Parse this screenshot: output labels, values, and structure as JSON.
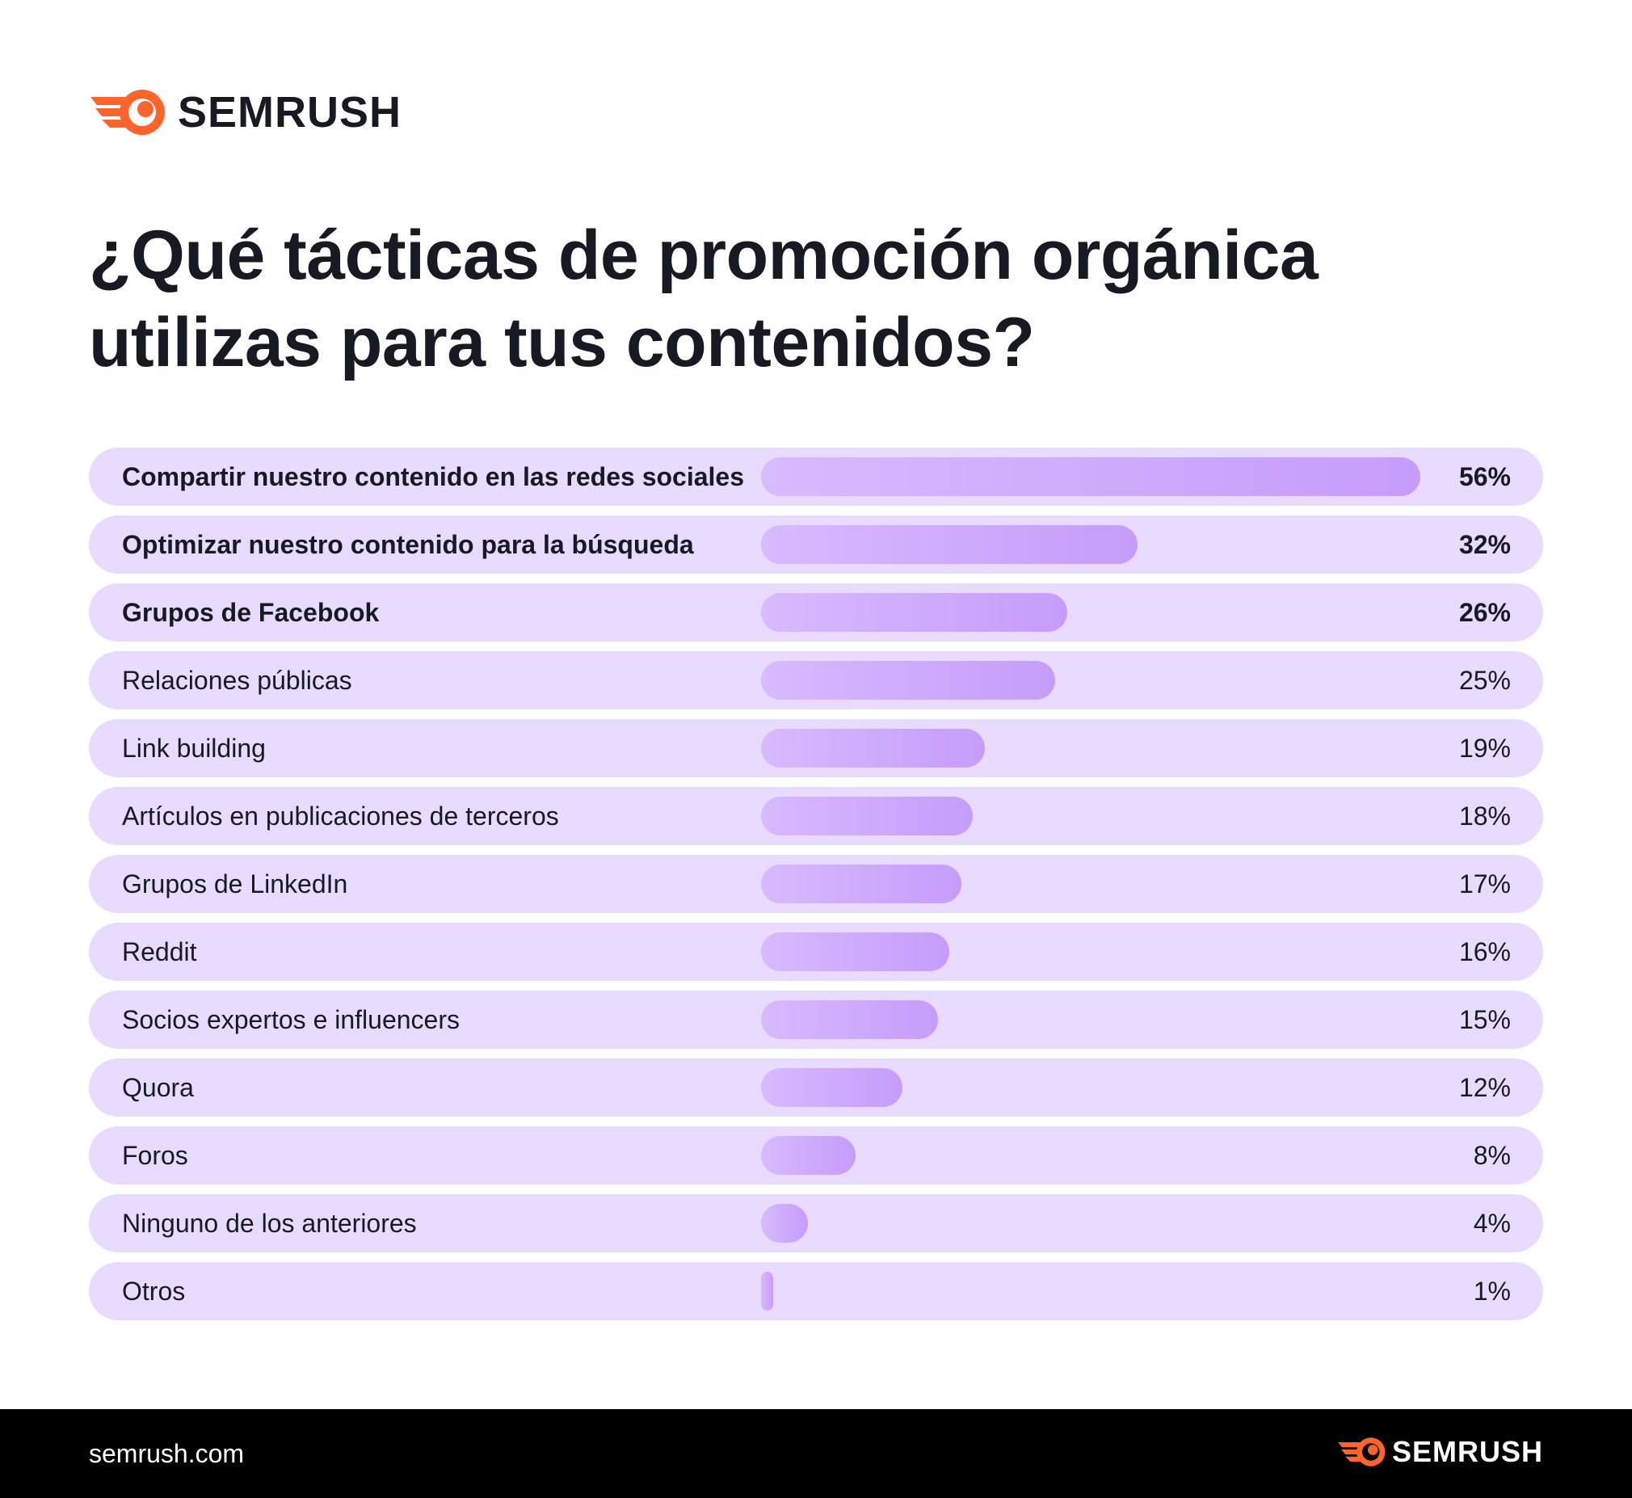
{
  "brand": {
    "name": "SEMRUSH",
    "accent_color": "#ff642d",
    "logo_icon": "semrush-comet-icon"
  },
  "footer": {
    "url": "semrush.com",
    "brand_name": "SEMRUSH"
  },
  "chart_data": {
    "type": "bar",
    "orientation": "horizontal",
    "title": "¿Qué tácticas de promoción orgánica utilizas para tus contenidos?",
    "categories": [
      "Compartir nuestro contenido en las redes sociales",
      "Optimizar nuestro contenido para la búsqueda",
      "Grupos de Facebook",
      "Relaciones públicas",
      "Link building",
      "Artículos en publicaciones de terceros",
      "Grupos de LinkedIn",
      "Reddit",
      "Socios expertos e influencers",
      "Quora",
      "Foros",
      "Ninguno de los anteriores",
      "Otros"
    ],
    "values": [
      56,
      32,
      26,
      25,
      19,
      18,
      17,
      16,
      15,
      12,
      8,
      4,
      1
    ],
    "value_labels": [
      "56%",
      "32%",
      "26%",
      "25%",
      "19%",
      "18%",
      "17%",
      "16%",
      "15%",
      "12%",
      "8%",
      "4%",
      "1%"
    ],
    "highlighted": [
      true,
      true,
      true,
      false,
      false,
      false,
      false,
      false,
      false,
      false,
      false,
      false,
      false
    ],
    "unit": "%",
    "xlim": [
      0,
      56
    ],
    "grid": false,
    "legend": "none",
    "bar_color": "#c69cfa",
    "track_color": "#e9dbff"
  }
}
